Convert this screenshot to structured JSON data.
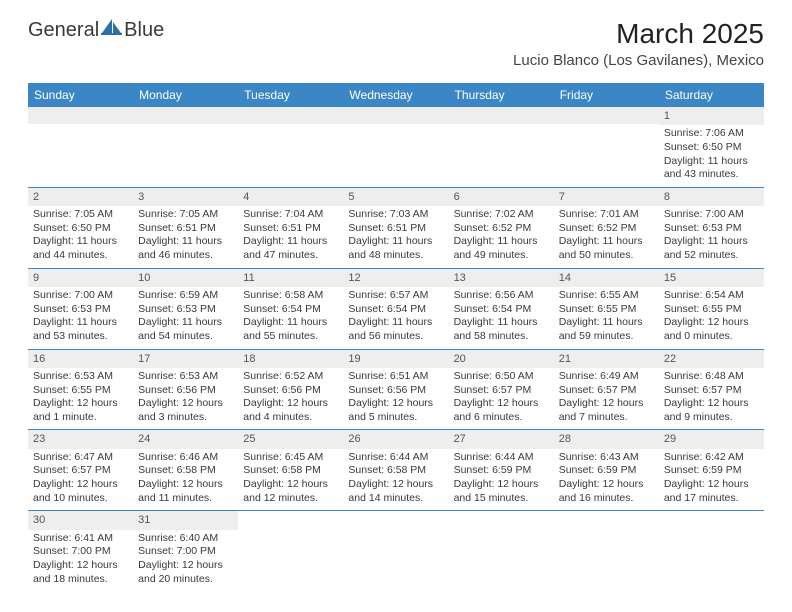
{
  "logo": {
    "part1": "General",
    "part2": "Blue"
  },
  "title": "March 2025",
  "location": "Lucio Blanco (Los Gavilanes), Mexico",
  "colors": {
    "header_bg": "#3b86c4",
    "header_text": "#ffffff",
    "daynum_bg": "#eeeeee",
    "border": "#3b86c4",
    "logo_accent": "#2f6fa8"
  },
  "weekdays": [
    "Sunday",
    "Monday",
    "Tuesday",
    "Wednesday",
    "Thursday",
    "Friday",
    "Saturday"
  ],
  "weeks": [
    [
      {
        "empty": true
      },
      {
        "empty": true
      },
      {
        "empty": true
      },
      {
        "empty": true
      },
      {
        "empty": true
      },
      {
        "empty": true
      },
      {
        "n": "1",
        "sr": "Sunrise: 7:06 AM",
        "ss": "Sunset: 6:50 PM",
        "d1": "Daylight: 11 hours",
        "d2": "and 43 minutes."
      }
    ],
    [
      {
        "n": "2",
        "sr": "Sunrise: 7:05 AM",
        "ss": "Sunset: 6:50 PM",
        "d1": "Daylight: 11 hours",
        "d2": "and 44 minutes."
      },
      {
        "n": "3",
        "sr": "Sunrise: 7:05 AM",
        "ss": "Sunset: 6:51 PM",
        "d1": "Daylight: 11 hours",
        "d2": "and 46 minutes."
      },
      {
        "n": "4",
        "sr": "Sunrise: 7:04 AM",
        "ss": "Sunset: 6:51 PM",
        "d1": "Daylight: 11 hours",
        "d2": "and 47 minutes."
      },
      {
        "n": "5",
        "sr": "Sunrise: 7:03 AM",
        "ss": "Sunset: 6:51 PM",
        "d1": "Daylight: 11 hours",
        "d2": "and 48 minutes."
      },
      {
        "n": "6",
        "sr": "Sunrise: 7:02 AM",
        "ss": "Sunset: 6:52 PM",
        "d1": "Daylight: 11 hours",
        "d2": "and 49 minutes."
      },
      {
        "n": "7",
        "sr": "Sunrise: 7:01 AM",
        "ss": "Sunset: 6:52 PM",
        "d1": "Daylight: 11 hours",
        "d2": "and 50 minutes."
      },
      {
        "n": "8",
        "sr": "Sunrise: 7:00 AM",
        "ss": "Sunset: 6:53 PM",
        "d1": "Daylight: 11 hours",
        "d2": "and 52 minutes."
      }
    ],
    [
      {
        "n": "9",
        "sr": "Sunrise: 7:00 AM",
        "ss": "Sunset: 6:53 PM",
        "d1": "Daylight: 11 hours",
        "d2": "and 53 minutes."
      },
      {
        "n": "10",
        "sr": "Sunrise: 6:59 AM",
        "ss": "Sunset: 6:53 PM",
        "d1": "Daylight: 11 hours",
        "d2": "and 54 minutes."
      },
      {
        "n": "11",
        "sr": "Sunrise: 6:58 AM",
        "ss": "Sunset: 6:54 PM",
        "d1": "Daylight: 11 hours",
        "d2": "and 55 minutes."
      },
      {
        "n": "12",
        "sr": "Sunrise: 6:57 AM",
        "ss": "Sunset: 6:54 PM",
        "d1": "Daylight: 11 hours",
        "d2": "and 56 minutes."
      },
      {
        "n": "13",
        "sr": "Sunrise: 6:56 AM",
        "ss": "Sunset: 6:54 PM",
        "d1": "Daylight: 11 hours",
        "d2": "and 58 minutes."
      },
      {
        "n": "14",
        "sr": "Sunrise: 6:55 AM",
        "ss": "Sunset: 6:55 PM",
        "d1": "Daylight: 11 hours",
        "d2": "and 59 minutes."
      },
      {
        "n": "15",
        "sr": "Sunrise: 6:54 AM",
        "ss": "Sunset: 6:55 PM",
        "d1": "Daylight: 12 hours",
        "d2": "and 0 minutes."
      }
    ],
    [
      {
        "n": "16",
        "sr": "Sunrise: 6:53 AM",
        "ss": "Sunset: 6:55 PM",
        "d1": "Daylight: 12 hours",
        "d2": "and 1 minute."
      },
      {
        "n": "17",
        "sr": "Sunrise: 6:53 AM",
        "ss": "Sunset: 6:56 PM",
        "d1": "Daylight: 12 hours",
        "d2": "and 3 minutes."
      },
      {
        "n": "18",
        "sr": "Sunrise: 6:52 AM",
        "ss": "Sunset: 6:56 PM",
        "d1": "Daylight: 12 hours",
        "d2": "and 4 minutes."
      },
      {
        "n": "19",
        "sr": "Sunrise: 6:51 AM",
        "ss": "Sunset: 6:56 PM",
        "d1": "Daylight: 12 hours",
        "d2": "and 5 minutes."
      },
      {
        "n": "20",
        "sr": "Sunrise: 6:50 AM",
        "ss": "Sunset: 6:57 PM",
        "d1": "Daylight: 12 hours",
        "d2": "and 6 minutes."
      },
      {
        "n": "21",
        "sr": "Sunrise: 6:49 AM",
        "ss": "Sunset: 6:57 PM",
        "d1": "Daylight: 12 hours",
        "d2": "and 7 minutes."
      },
      {
        "n": "22",
        "sr": "Sunrise: 6:48 AM",
        "ss": "Sunset: 6:57 PM",
        "d1": "Daylight: 12 hours",
        "d2": "and 9 minutes."
      }
    ],
    [
      {
        "n": "23",
        "sr": "Sunrise: 6:47 AM",
        "ss": "Sunset: 6:57 PM",
        "d1": "Daylight: 12 hours",
        "d2": "and 10 minutes."
      },
      {
        "n": "24",
        "sr": "Sunrise: 6:46 AM",
        "ss": "Sunset: 6:58 PM",
        "d1": "Daylight: 12 hours",
        "d2": "and 11 minutes."
      },
      {
        "n": "25",
        "sr": "Sunrise: 6:45 AM",
        "ss": "Sunset: 6:58 PM",
        "d1": "Daylight: 12 hours",
        "d2": "and 12 minutes."
      },
      {
        "n": "26",
        "sr": "Sunrise: 6:44 AM",
        "ss": "Sunset: 6:58 PM",
        "d1": "Daylight: 12 hours",
        "d2": "and 14 minutes."
      },
      {
        "n": "27",
        "sr": "Sunrise: 6:44 AM",
        "ss": "Sunset: 6:59 PM",
        "d1": "Daylight: 12 hours",
        "d2": "and 15 minutes."
      },
      {
        "n": "28",
        "sr": "Sunrise: 6:43 AM",
        "ss": "Sunset: 6:59 PM",
        "d1": "Daylight: 12 hours",
        "d2": "and 16 minutes."
      },
      {
        "n": "29",
        "sr": "Sunrise: 6:42 AM",
        "ss": "Sunset: 6:59 PM",
        "d1": "Daylight: 12 hours",
        "d2": "and 17 minutes."
      }
    ],
    [
      {
        "n": "30",
        "sr": "Sunrise: 6:41 AM",
        "ss": "Sunset: 7:00 PM",
        "d1": "Daylight: 12 hours",
        "d2": "and 18 minutes."
      },
      {
        "n": "31",
        "sr": "Sunrise: 6:40 AM",
        "ss": "Sunset: 7:00 PM",
        "d1": "Daylight: 12 hours",
        "d2": "and 20 minutes."
      },
      {
        "empty": true
      },
      {
        "empty": true
      },
      {
        "empty": true
      },
      {
        "empty": true
      },
      {
        "empty": true
      }
    ]
  ]
}
